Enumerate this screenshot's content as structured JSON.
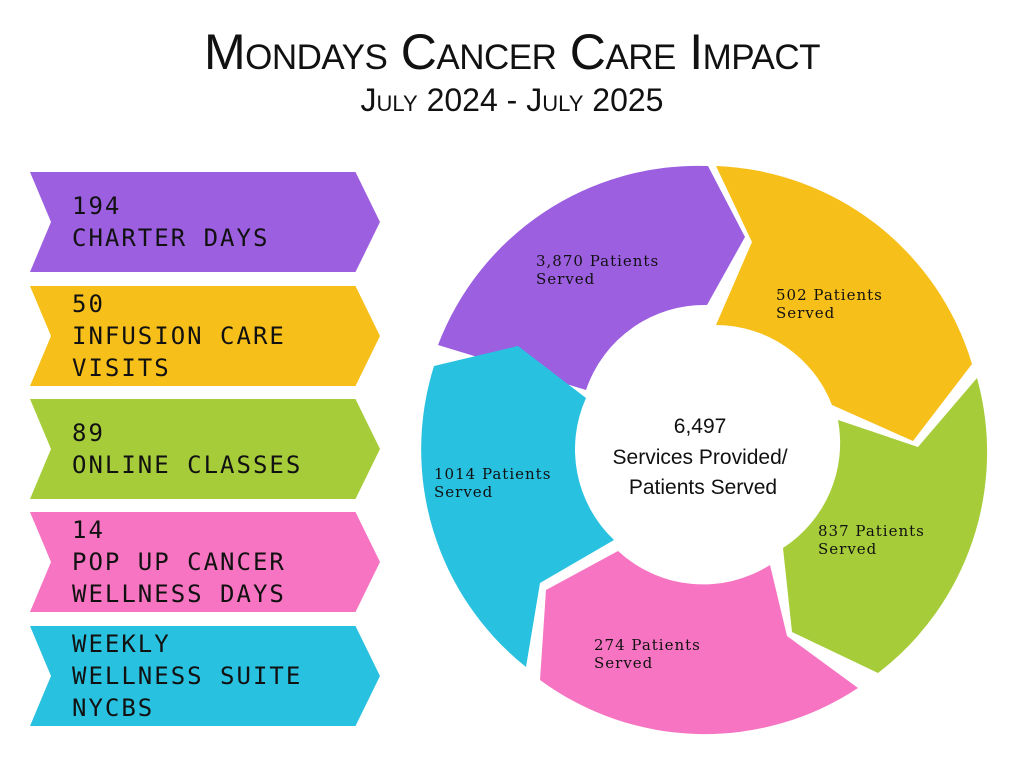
{
  "header": {
    "title": "Mondays Cancer Care Impact",
    "subtitle": "July 2024 - July 2025"
  },
  "colors": {
    "purple": "#9b5fe0",
    "yellow": "#f7bf1a",
    "green": "#a6cc3a",
    "pink": "#f674c1",
    "blue": "#29c1e0"
  },
  "banners": [
    {
      "number": "194",
      "label": "CHARTER DAYS",
      "color": "#9b5fe0"
    },
    {
      "number": "50",
      "label": "INFUSION CARE\nVISITS",
      "color": "#f7bf1a"
    },
    {
      "number": "89",
      "label": "ONLINE CLASSES",
      "color": "#a6cc3a"
    },
    {
      "number": "14",
      "label": "POP UP CANCER\nWELLNESS DAYS",
      "color": "#f674c1"
    },
    {
      "number": "",
      "label": "WEEKLY\nWELLNESS SUITE\nNYCBS",
      "color": "#29c1e0"
    }
  ],
  "cycle": {
    "center_number": "6,497",
    "center_line1": "Services Provided/",
    "center_line2": "Patients Served",
    "segments": [
      {
        "line1": "3,870 Patients",
        "line2": "Served",
        "color": "#9b5fe0"
      },
      {
        "line1": "502 Patients",
        "line2": "Served",
        "color": "#f7bf1a"
      },
      {
        "line1": "837 Patients",
        "line2": "Served",
        "color": "#a6cc3a"
      },
      {
        "line1": "274 Patients",
        "line2": "Served",
        "color": "#f674c1"
      },
      {
        "line1": "1014 Patients",
        "line2": "Served",
        "color": "#29c1e0"
      }
    ]
  }
}
